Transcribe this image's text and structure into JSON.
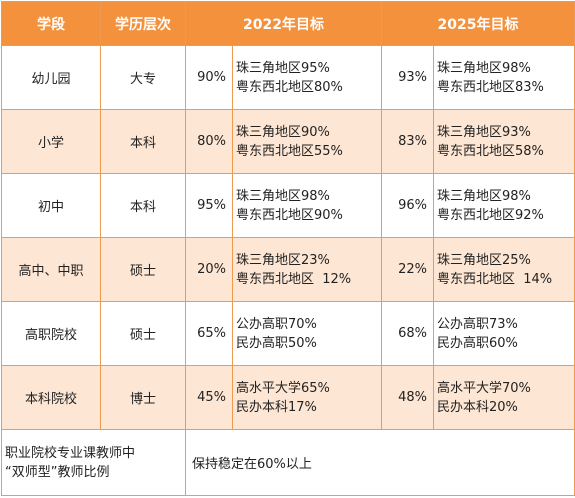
{
  "headers": {
    "stage": "学段",
    "degree": "学历层次",
    "target_2022": "2022年目标",
    "target_2025": "2025年目标"
  },
  "rows": [
    {
      "stage": "幼儿园",
      "degree": "大专",
      "p2022": "90%",
      "d2022": [
        "珠三角地区95%",
        "粤东西北地区80%"
      ],
      "p2025": "93%",
      "d2025": [
        "珠三角地区98%",
        "粤东西北地区83%"
      ]
    },
    {
      "stage": "小学",
      "degree": "本科",
      "p2022": "80%",
      "d2022": [
        "珠三角地区90%",
        "粤东西北地区55%"
      ],
      "p2025": "83%",
      "d2025": [
        "珠三角地区93%",
        "粤东西北地区58%"
      ]
    },
    {
      "stage": "初中",
      "degree": "本科",
      "p2022": "95%",
      "d2022": [
        "珠三角地区98%",
        "粤东西北地区90%"
      ],
      "p2025": "96%",
      "d2025": [
        "珠三角地区98%",
        "粤东西北地区92%"
      ]
    },
    {
      "stage": "高中、中职",
      "degree": "硕士",
      "p2022": "20%",
      "d2022": [
        "珠三角地区23%",
        "粤东西北地区  12%"
      ],
      "p2025": "22%",
      "d2025": [
        "珠三角地区25%",
        "粤东西北地区  14%"
      ]
    },
    {
      "stage": "高职院校",
      "degree": "硕士",
      "p2022": "65%",
      "d2022": [
        "公办高职70%",
        "民办高职50%"
      ],
      "p2025": "68%",
      "d2025": [
        "公办高职73%",
        "民办高职60%"
      ]
    },
    {
      "stage": "本科院校",
      "degree": "博士",
      "p2022": "45%",
      "d2022": [
        "高水平大学65%",
        "民办本科17%"
      ],
      "p2025": "48%",
      "d2025": [
        "高水平大学70%",
        "民办本科20%"
      ]
    }
  ],
  "footer": {
    "label": [
      "职业院校专业课教师中",
      "“双师型”教师比例"
    ],
    "value": "保持稳定在60%以上"
  },
  "colors": {
    "header_bg": "#f3913d",
    "stripe_bg": "#fde6d3",
    "border": "#ed9a52"
  }
}
